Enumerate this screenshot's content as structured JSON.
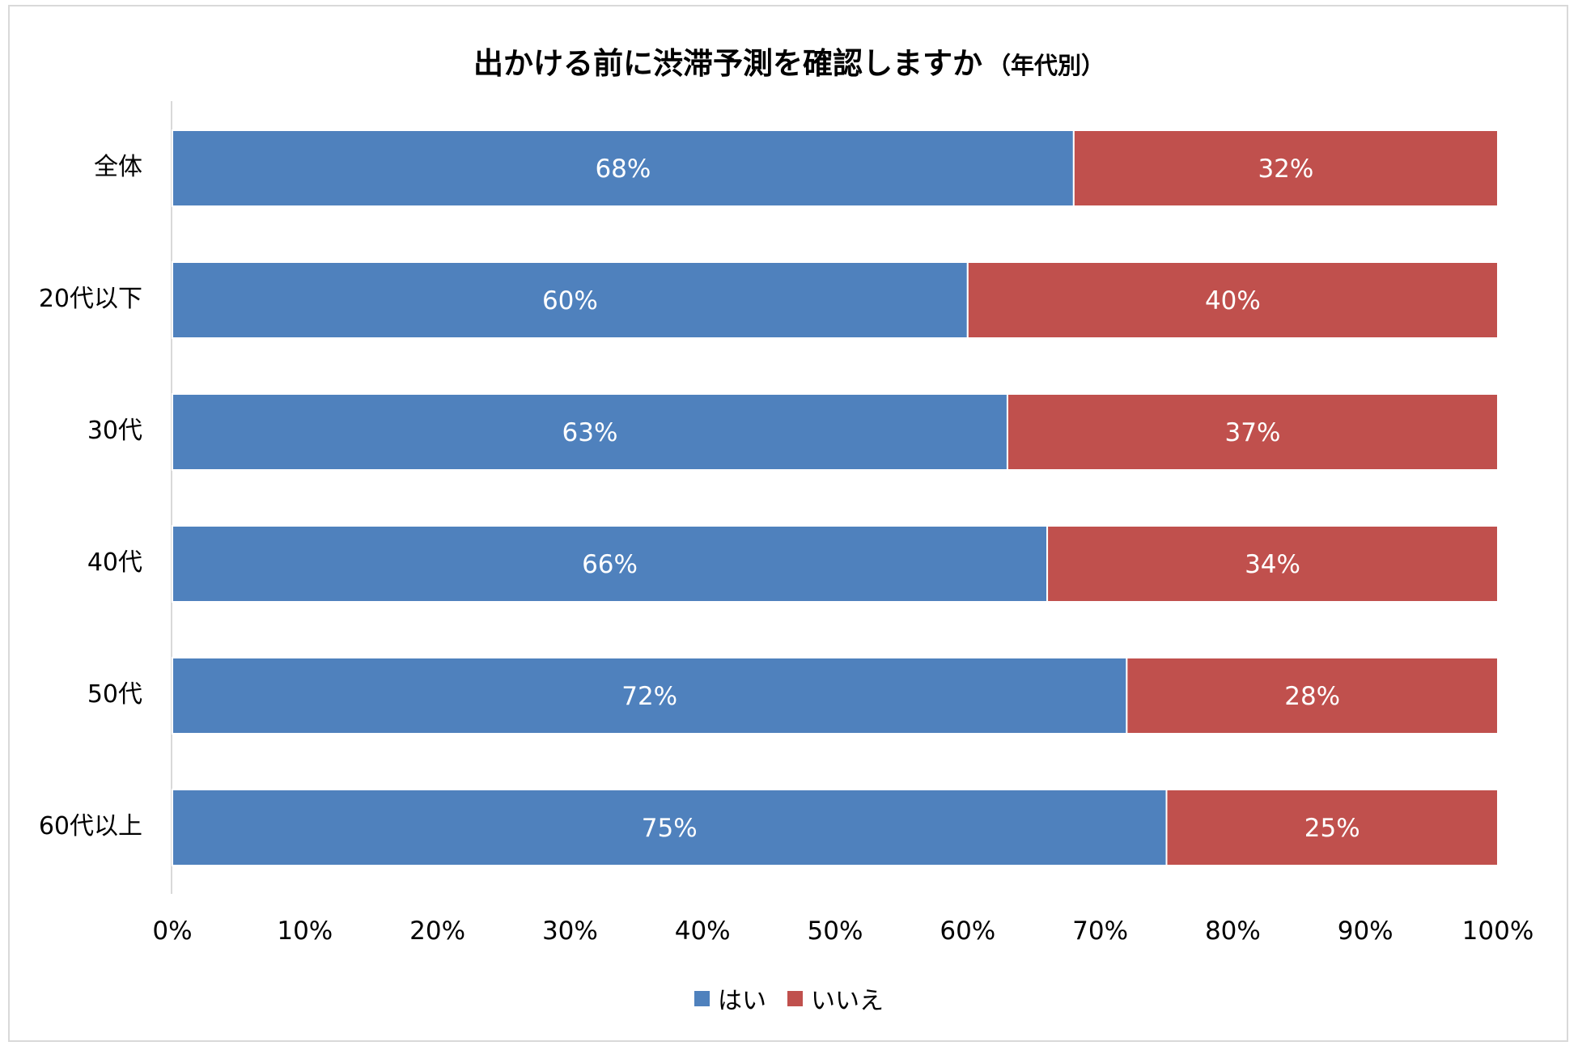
{
  "chart_data": {
    "type": "bar",
    "orientation": "horizontal",
    "stacked": true,
    "title": "出かける前に渋滞予測を確認しますか",
    "subtitle": "（年代別）",
    "categories": [
      "全体",
      "20代以下",
      "30代",
      "40代",
      "50代",
      "60代以上"
    ],
    "series": [
      {
        "name": "はい",
        "color": "#4f81bd",
        "values": [
          68,
          60,
          63,
          66,
          72,
          75
        ]
      },
      {
        "name": "いいえ",
        "color": "#c0504d",
        "values": [
          32,
          40,
          37,
          34,
          28,
          25
        ]
      }
    ],
    "data_labels": [
      [
        "68%",
        "60%",
        "63%",
        "66%",
        "72%",
        "75%"
      ],
      [
        "32%",
        "40%",
        "37%",
        "34%",
        "28%",
        "25%"
      ]
    ],
    "xlim": [
      0,
      100
    ],
    "x_ticks": [
      "0%",
      "10%",
      "20%",
      "30%",
      "40%",
      "50%",
      "60%",
      "70%",
      "80%",
      "90%",
      "100%"
    ],
    "grid": false,
    "legend_position": "bottom"
  }
}
